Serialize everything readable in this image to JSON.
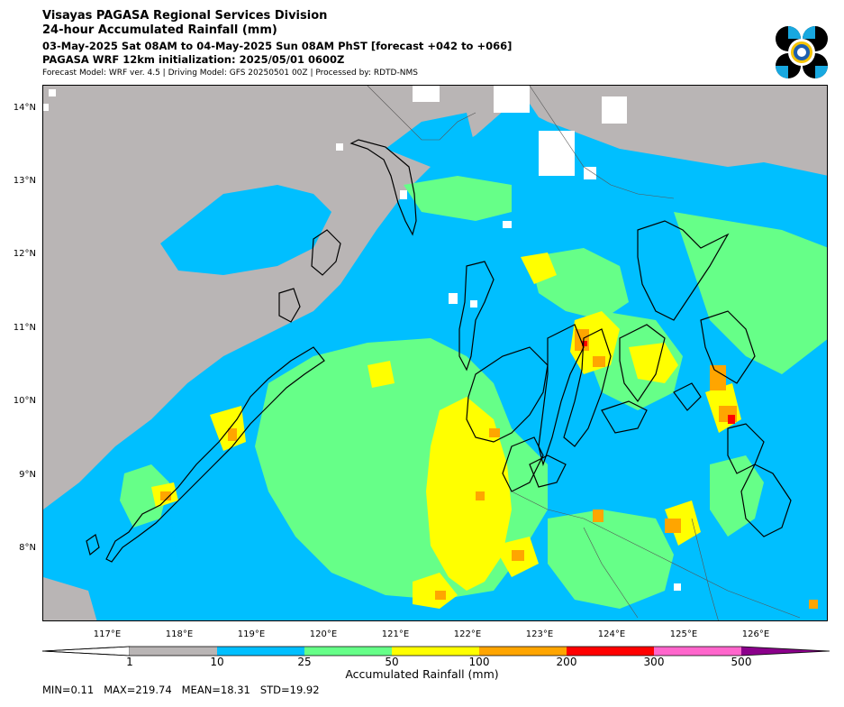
{
  "header": {
    "line1": "Visayas PAGASA Regional Services Division",
    "line2": "24-hour Accumulated Rainfall (mm)",
    "line3": "03-May-2025 Sat 08AM to 04-May-2025 Sun 08AM PhST [forecast +042 to +066]",
    "line4": "PAGASA WRF 12km initialization: 2025/05/01 0600Z",
    "line5": "Forecast Model: WRF ver. 4.5 | Driving Model: GFS 20250501 00Z | Processed by: RDTD-NMS"
  },
  "map": {
    "lat_labels": [
      "14°N",
      "13°N",
      "12°N",
      "11°N",
      "10°N",
      "9°N",
      "8°N"
    ],
    "lon_labels": [
      "117°E",
      "118°E",
      "119°E",
      "120°E",
      "121°E",
      "122°E",
      "123°E",
      "124°E",
      "125°E",
      "126°E"
    ],
    "colors": {
      "below1": "#ffffff",
      "c1_10": "#b9b5b5",
      "c10_25": "#00bfff",
      "c25_50": "#66ff88",
      "c50_100": "#ffff00",
      "c100_200": "#ffa500",
      "c200_300": "#ff0000",
      "c300_500": "#ff66cc",
      "c500plus": "#8b008b",
      "coastline": "#000000"
    }
  },
  "colorbar": {
    "ticks": [
      "1",
      "10",
      "25",
      "50",
      "100",
      "200",
      "300",
      "500"
    ],
    "label": "Accumulated Rainfall (mm)",
    "colors": [
      "#b9b5b5",
      "#00bfff",
      "#66ff88",
      "#ffff00",
      "#ffa500",
      "#ff0000",
      "#ff66cc",
      "#8b008b"
    ]
  },
  "stats": {
    "text": "MIN=0.11   MAX=219.74   MEAN=18.31   STD=19.92"
  }
}
